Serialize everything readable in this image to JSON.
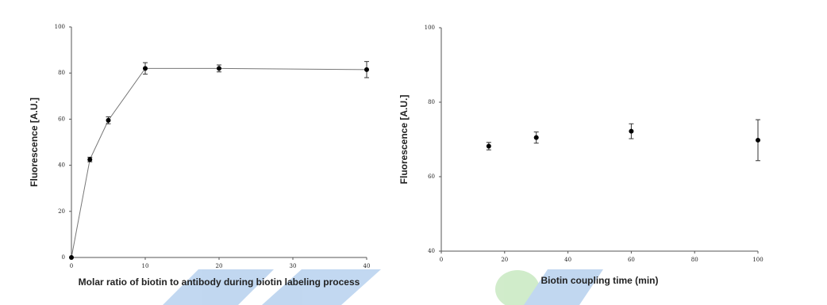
{
  "chart_data": [
    {
      "type": "line",
      "x_label": "Molar ratio of biotin to antibody during biotin labeling process",
      "y_label": "Fluorescence [A.U.]",
      "x": [
        0,
        2.5,
        5,
        10,
        20,
        40
      ],
      "values": [
        0,
        42.5,
        59.5,
        82,
        82,
        81.5
      ],
      "errors": [
        0,
        1,
        1.5,
        2.5,
        1.5,
        3.5
      ],
      "color": "#000000",
      "xlim": [
        0,
        40
      ],
      "xticks": [
        0,
        10,
        20,
        30,
        40
      ],
      "ylim": [
        0,
        100
      ],
      "yticks": [
        0,
        20,
        40,
        60,
        80,
        100
      ]
    },
    {
      "type": "scatter",
      "x_label": "Biotin coupling time (min)",
      "y_label": "Fluorescence [A.U.]",
      "x": [
        15,
        30,
        60,
        100
      ],
      "values": [
        68.2,
        70.5,
        72.2,
        69.8
      ],
      "errors": [
        1,
        1.5,
        2,
        5.5
      ],
      "color": "#000000",
      "xlim": [
        0,
        100
      ],
      "xticks": [
        0,
        20,
        40,
        60,
        80,
        100
      ],
      "ylim": [
        40,
        100
      ],
      "yticks": [
        40,
        60,
        80,
        100
      ]
    }
  ]
}
